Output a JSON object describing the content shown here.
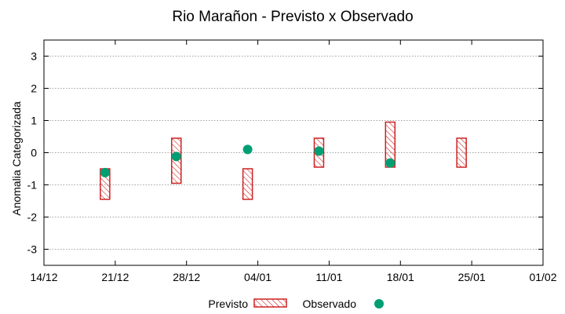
{
  "chart_data": {
    "type": "floating-bar-with-points",
    "title": "Rio Marañon - Previsto x Observado",
    "xlabel": "",
    "ylabel": "Anomalia Categorizada",
    "ylim": [
      -3.5,
      3.5
    ],
    "yticks": [
      -3,
      -2,
      -1,
      0,
      1,
      2,
      3
    ],
    "ytick_labels": [
      "-3",
      "-2",
      "-1",
      "0",
      "1",
      "2",
      "3"
    ],
    "xlim_days": [
      0,
      49
    ],
    "xticks": [
      {
        "day": 0,
        "label": "14/12"
      },
      {
        "day": 7,
        "label": "21/12"
      },
      {
        "day": 14,
        "label": "28/12"
      },
      {
        "day": 21,
        "label": "04/01"
      },
      {
        "day": 28,
        "label": "11/01"
      },
      {
        "day": 35,
        "label": "18/01"
      },
      {
        "day": 42,
        "label": "25/01"
      },
      {
        "day": 49,
        "label": "01/02"
      }
    ],
    "grid": true,
    "legend_position": "bottom-center",
    "series": [
      {
        "name": "Previsto",
        "kind": "range-bar",
        "color": "#cc2222",
        "points": [
          {
            "day": 6,
            "low": -1.45,
            "high": -0.5
          },
          {
            "day": 13,
            "low": -0.95,
            "high": 0.45
          },
          {
            "day": 20,
            "low": -1.45,
            "high": -0.5
          },
          {
            "day": 27,
            "low": -0.45,
            "high": 0.45
          },
          {
            "day": 34,
            "low": -0.45,
            "high": 0.95
          },
          {
            "day": 41,
            "low": -0.45,
            "high": 0.45
          }
        ]
      },
      {
        "name": "Observado",
        "kind": "point",
        "color": "#009e73",
        "points": [
          {
            "day": 6,
            "value": -0.62
          },
          {
            "day": 13,
            "value": -0.12
          },
          {
            "day": 20,
            "value": 0.1
          },
          {
            "day": 27,
            "value": 0.05
          },
          {
            "day": 34,
            "value": -0.32
          }
        ]
      }
    ]
  }
}
